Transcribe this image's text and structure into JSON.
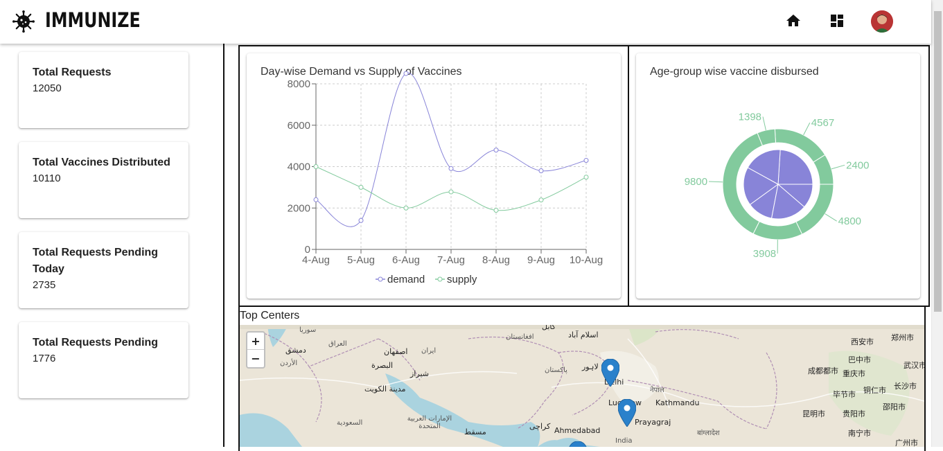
{
  "app": {
    "title": "IMMUNIZE",
    "logo_icon": "virus-icon",
    "nav": [
      {
        "icon": "home-icon"
      },
      {
        "icon": "dashboard-icon"
      }
    ],
    "avatar_icon": "user-avatar"
  },
  "stats": [
    {
      "label": "Total Requests",
      "value": "12050"
    },
    {
      "label": "Total Vaccines Distributed",
      "value": "10110"
    },
    {
      "label": "Total Requests Pending Today",
      "value": "2735"
    },
    {
      "label": "Total Requests Pending",
      "value": "1776"
    }
  ],
  "line_chart_title": "Day-wise Demand vs Supply of Vaccines",
  "pie_chart_title": "Age-group wise vaccine disbursed",
  "chart_data": [
    {
      "type": "line",
      "title": "Day-wise Demand vs Supply of Vaccines",
      "categories": [
        "4-Aug",
        "5-Aug",
        "6-Aug",
        "7-Aug",
        "8-Aug",
        "9-Aug",
        "10-Aug"
      ],
      "series": [
        {
          "name": "demand",
          "color": "#8884d8",
          "values": [
            2400,
            1398,
            9800,
            3908,
            4800,
            3800,
            4300
          ]
        },
        {
          "name": "supply",
          "color": "#82ca9d",
          "values": [
            4000,
            3000,
            2000,
            2780,
            1890,
            2390,
            3490
          ]
        }
      ],
      "yticks": [
        "0",
        "2000",
        "4000",
        "6000",
        "8000"
      ],
      "ylim": [
        0,
        8000
      ],
      "grid": true,
      "legend": "bottom"
    },
    {
      "type": "pie",
      "title": "Age-group wise vaccine disbursed",
      "inner_color": "#8884d8",
      "outer_color": "#82ca9d",
      "inner_values": [
        400,
        300,
        300,
        200,
        278,
        189
      ],
      "outer_values": [
        2400,
        4567,
        1398,
        9800,
        3908,
        4800
      ],
      "outer_labels": [
        "2400",
        "4567",
        "1398",
        "9800",
        "3908",
        "4800"
      ]
    }
  ],
  "map": {
    "title": "Top Centers",
    "zoom_in": "+",
    "zoom_out": "−",
    "labels": [
      "سوريا",
      "دمشق",
      "الأردن",
      "العراق",
      "اصفهان",
      "ایران",
      "البصرة",
      "شیراز",
      "مدينة الكويت",
      "السعودية",
      "الإمارات العربية المتحدة",
      "مسقط",
      "كراچی",
      "افغانستان",
      "اسلام آباد",
      "پاکستان",
      "لاہور",
      "Delhi",
      "Lucknow",
      "Prayagraj",
      "Kathmandu",
      "नेपाल",
      "Ahmedabad",
      "India",
      "西安市",
      "郑州市",
      "巴中市",
      "成都都市",
      "重庆市",
      "武汉市",
      "毕节市",
      "铜仁市",
      "长沙市",
      "昆明市",
      "贵阳市",
      "邵阳市",
      "南宁市",
      "广州市",
      "बांग्लादेश",
      "کابل"
    ]
  }
}
